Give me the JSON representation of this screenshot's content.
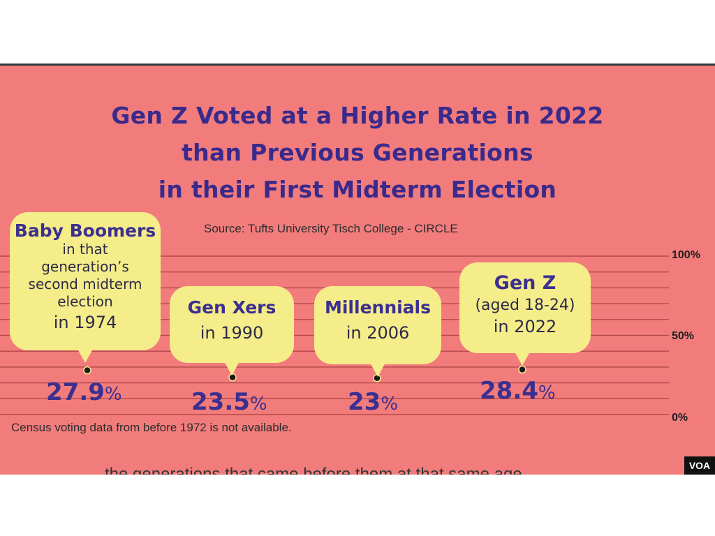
{
  "chart_data": {
    "type": "bar",
    "title": [
      "Gen Z Voted at a Higher Rate in 2022",
      "than Previous Generations",
      "in their First Midterm Election"
    ],
    "source": "Source: Tufts University Tisch College - CIRCLE",
    "ylim": [
      0,
      100
    ],
    "y_ticks": [
      "100%",
      "50%",
      "0%"
    ],
    "categories": [
      {
        "heading": "Baby Boomers",
        "lines": [
          "in that",
          "generation’s",
          "second midterm",
          "election"
        ],
        "year_line": "in 1974"
      },
      {
        "heading": "Gen Xers",
        "lines": [],
        "year_line": "in 1990"
      },
      {
        "heading": "Millennials",
        "lines": [],
        "year_line": "in 2006"
      },
      {
        "heading": "Gen Z",
        "lines": [
          "(aged 18-24)"
        ],
        "year_line": "in 2022"
      }
    ],
    "values": [
      27.9,
      23.5,
      23,
      28.4
    ],
    "value_labels": [
      "27.9",
      "23.5",
      "23",
      "28.4"
    ],
    "percent_sign": "%",
    "footnote": "Census voting data from before 1972 is not available."
  },
  "overlay": {
    "logo": "VOA",
    "caption": "the generations that came before them at that same age"
  }
}
